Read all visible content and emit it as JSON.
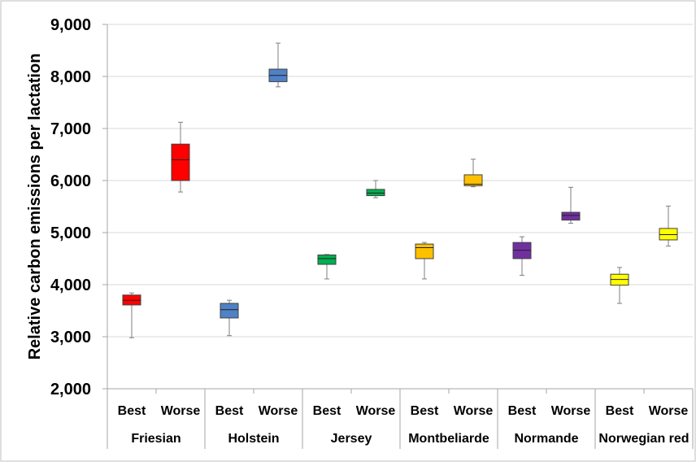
{
  "chart_data": {
    "type": "boxplot",
    "title": "",
    "ylabel": "Relative carbon emissions per lactation",
    "xlabel": "",
    "ylim": [
      2000,
      9000
    ],
    "yticks": [
      2000,
      3000,
      4000,
      5000,
      6000,
      7000,
      8000,
      9000
    ],
    "ytick_labels": [
      "2,000",
      "3,000",
      "4,000",
      "5,000",
      "6,000",
      "7,000",
      "8,000",
      "9,000"
    ],
    "grid": true,
    "groups": [
      {
        "name": "Friesian",
        "color": "#ff0000",
        "boxes": [
          {
            "label": "Best",
            "min": 2980,
            "q1": 3610,
            "median": 3700,
            "q3": 3800,
            "max": 3840
          },
          {
            "label": "Worse",
            "min": 5780,
            "q1": 6000,
            "median": 6400,
            "q3": 6700,
            "max": 7120
          }
        ]
      },
      {
        "name": "Holstein",
        "color": "#4f81c7",
        "boxes": [
          {
            "label": "Best",
            "min": 3020,
            "q1": 3360,
            "median": 3520,
            "q3": 3640,
            "max": 3700
          },
          {
            "label": "Worse",
            "min": 7800,
            "q1": 7900,
            "median": 8020,
            "q3": 8140,
            "max": 8640
          }
        ]
      },
      {
        "name": "Jersey",
        "color": "#00b050",
        "boxes": [
          {
            "label": "Best",
            "min": 4110,
            "q1": 4390,
            "median": 4500,
            "q3": 4570,
            "max": 4580
          },
          {
            "label": "Worse",
            "min": 5670,
            "q1": 5710,
            "median": 5760,
            "q3": 5830,
            "max": 6000
          }
        ]
      },
      {
        "name": "Montbeliarde",
        "color": "#ffc000",
        "boxes": [
          {
            "label": "Best",
            "min": 4110,
            "q1": 4500,
            "median": 4710,
            "q3": 4780,
            "max": 4810
          },
          {
            "label": "Worse",
            "min": 5880,
            "q1": 5900,
            "median": 5930,
            "q3": 6110,
            "max": 6410
          }
        ]
      },
      {
        "name": "Normande",
        "color": "#7030a0",
        "boxes": [
          {
            "label": "Best",
            "min": 4180,
            "q1": 4500,
            "median": 4660,
            "q3": 4810,
            "max": 4920
          },
          {
            "label": "Worse",
            "min": 5180,
            "q1": 5240,
            "median": 5330,
            "q3": 5390,
            "max": 5870
          }
        ]
      },
      {
        "name": "Norwegian red",
        "color": "#ffff00",
        "boxes": [
          {
            "label": "Best",
            "min": 3640,
            "q1": 3990,
            "median": 4100,
            "q3": 4200,
            "max": 4330
          },
          {
            "label": "Worse",
            "min": 4740,
            "q1": 4860,
            "median": 4960,
            "q3": 5080,
            "max": 5510
          }
        ]
      }
    ]
  }
}
